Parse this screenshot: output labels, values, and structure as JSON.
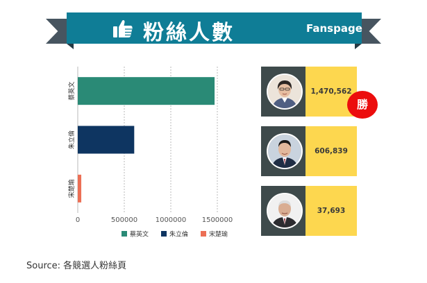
{
  "header": {
    "title": "粉絲人數",
    "subtitle": "Fanspage",
    "icon": "thumbs-up-icon"
  },
  "chart_data": {
    "type": "bar",
    "orientation": "horizontal",
    "title": "",
    "xlabel": "",
    "ylabel": "",
    "categories": [
      "蔡英文",
      "朱立倫",
      "宋楚瑜"
    ],
    "values": [
      1470562,
      606839,
      37693
    ],
    "colors": [
      "#2a8a76",
      "#0e3561",
      "#ec6f55"
    ],
    "xlim": [
      0,
      1700000
    ],
    "xticks": [
      0,
      500000,
      1000000,
      1500000
    ],
    "xtick_labels": [
      "0",
      "500000",
      "1000000",
      "1500000"
    ],
    "grid": "vertical dashed",
    "legend_position": "bottom"
  },
  "cards": [
    {
      "value_text": "1,470,562",
      "avatar": "candidate-1-portrait"
    },
    {
      "value_text": "606,839",
      "avatar": "candidate-2-portrait"
    },
    {
      "value_text": "37,693",
      "avatar": "candidate-3-portrait"
    }
  ],
  "winner_badge": "勝",
  "source": "Source: 各競選人粉絲頁",
  "colors": {
    "ribbon": "#0f7d96",
    "ribbon_tail": "#475560",
    "card_dark": "#3e4a4b",
    "card_yellow": "#fdd74f",
    "badge": "#ec0d0d"
  }
}
